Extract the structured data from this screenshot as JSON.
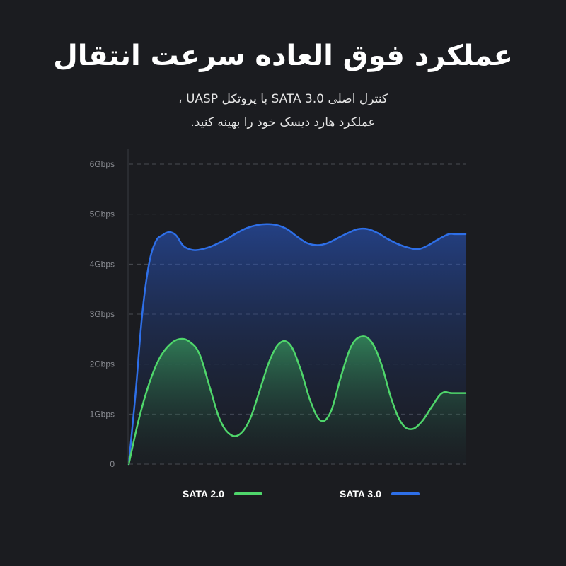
{
  "title": "عملکرد فوق العاده سرعت انتقال",
  "subtitle_line1": "کنترل اصلی SATA 3.0 با پروتکل UASP ،",
  "subtitle_line2": "عملکرد هارد دیسک خود را بهینه کنید.",
  "chart_data": {
    "type": "area",
    "title": "عملکرد فوق العاده سرعت انتقال",
    "xlabel": "",
    "ylabel": "",
    "ylim": [
      0,
      6
    ],
    "xlim": [
      0,
      100
    ],
    "ytick_labels": [
      "0",
      "1Gbps",
      "2Gbps",
      "3Gbps",
      "4Gbps",
      "5Gbps",
      "6Gbps"
    ],
    "grid": true,
    "legend_placement": "bottom",
    "series": [
      {
        "name": "SATA 2.0",
        "color": "#4fd66b",
        "x": [
          0,
          3,
          6,
          9,
          12,
          15,
          18,
          21,
          24,
          27,
          30,
          33,
          36,
          39,
          42,
          45,
          48,
          51,
          54,
          57,
          60,
          63,
          66,
          69,
          72,
          75,
          78,
          81,
          84,
          87,
          90,
          93,
          96,
          100
        ],
        "values": [
          0.0,
          0.9,
          1.6,
          2.1,
          2.38,
          2.5,
          2.45,
          2.2,
          1.55,
          0.9,
          0.6,
          0.6,
          0.9,
          1.5,
          2.1,
          2.43,
          2.38,
          1.9,
          1.25,
          0.87,
          1.05,
          1.75,
          2.35,
          2.55,
          2.45,
          2.0,
          1.3,
          0.82,
          0.7,
          0.85,
          1.15,
          1.42,
          1.42,
          1.42
        ]
      },
      {
        "name": "SATA 3.0",
        "color": "#2e6fe8",
        "x": [
          0,
          2,
          4,
          6,
          8,
          10,
          12,
          14,
          16,
          18,
          20,
          23,
          26,
          29,
          32,
          35,
          38,
          41,
          44,
          47,
          50,
          53,
          56,
          59,
          62,
          65,
          68,
          71,
          74,
          77,
          80,
          83,
          86,
          89,
          92,
          95,
          97,
          100
        ],
        "values": [
          0.0,
          1.4,
          3.0,
          4.0,
          4.45,
          4.58,
          4.64,
          4.58,
          4.38,
          4.3,
          4.28,
          4.32,
          4.4,
          4.5,
          4.62,
          4.72,
          4.78,
          4.8,
          4.78,
          4.7,
          4.55,
          4.42,
          4.38,
          4.42,
          4.52,
          4.62,
          4.7,
          4.7,
          4.62,
          4.5,
          4.4,
          4.33,
          4.3,
          4.38,
          4.5,
          4.6,
          4.6,
          4.6
        ]
      }
    ]
  }
}
